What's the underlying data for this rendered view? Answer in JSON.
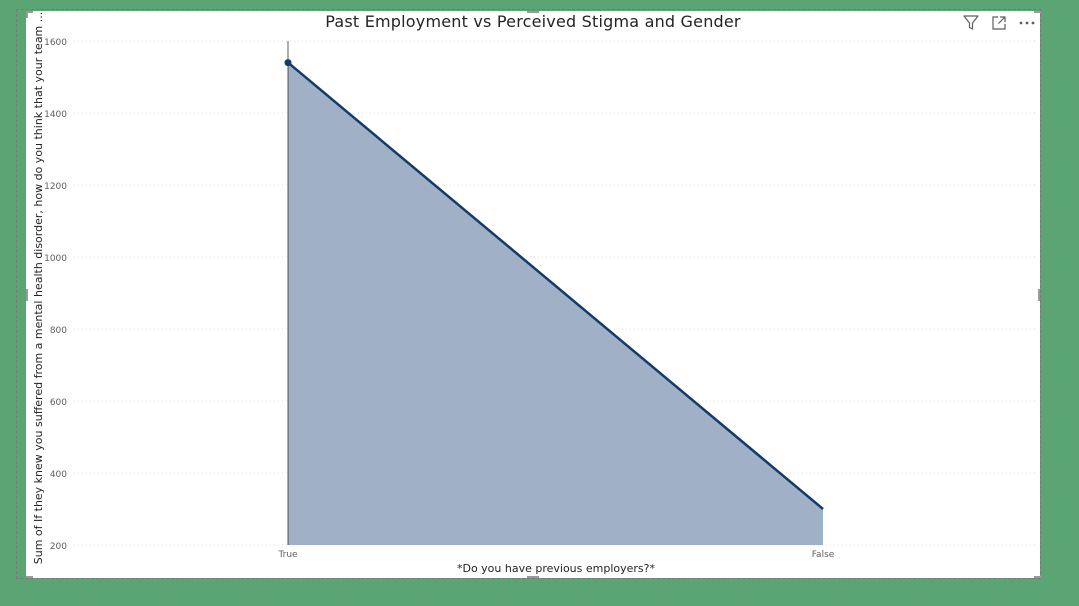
{
  "chart_data": {
    "type": "area",
    "title": "Past Employment vs Perceived Stigma and Gender",
    "xlabel": "*Do you have previous employers?*",
    "ylabel": "Sum of If they knew you suffered from a mental health disorder, how do you think that your team ...",
    "categories": [
      "True",
      "False"
    ],
    "series": [
      {
        "values": [
          1540,
          300
        ]
      }
    ],
    "ylim": [
      200,
      1600
    ],
    "yticks": [
      200,
      400,
      600,
      800,
      1000,
      1200,
      1400,
      1600
    ],
    "grid": true,
    "line_color": "#123b6b",
    "fill_color": "#a0b0c6"
  },
  "header": {
    "icons": [
      "filter-icon",
      "focus-mode-icon",
      "more-options-icon"
    ]
  }
}
